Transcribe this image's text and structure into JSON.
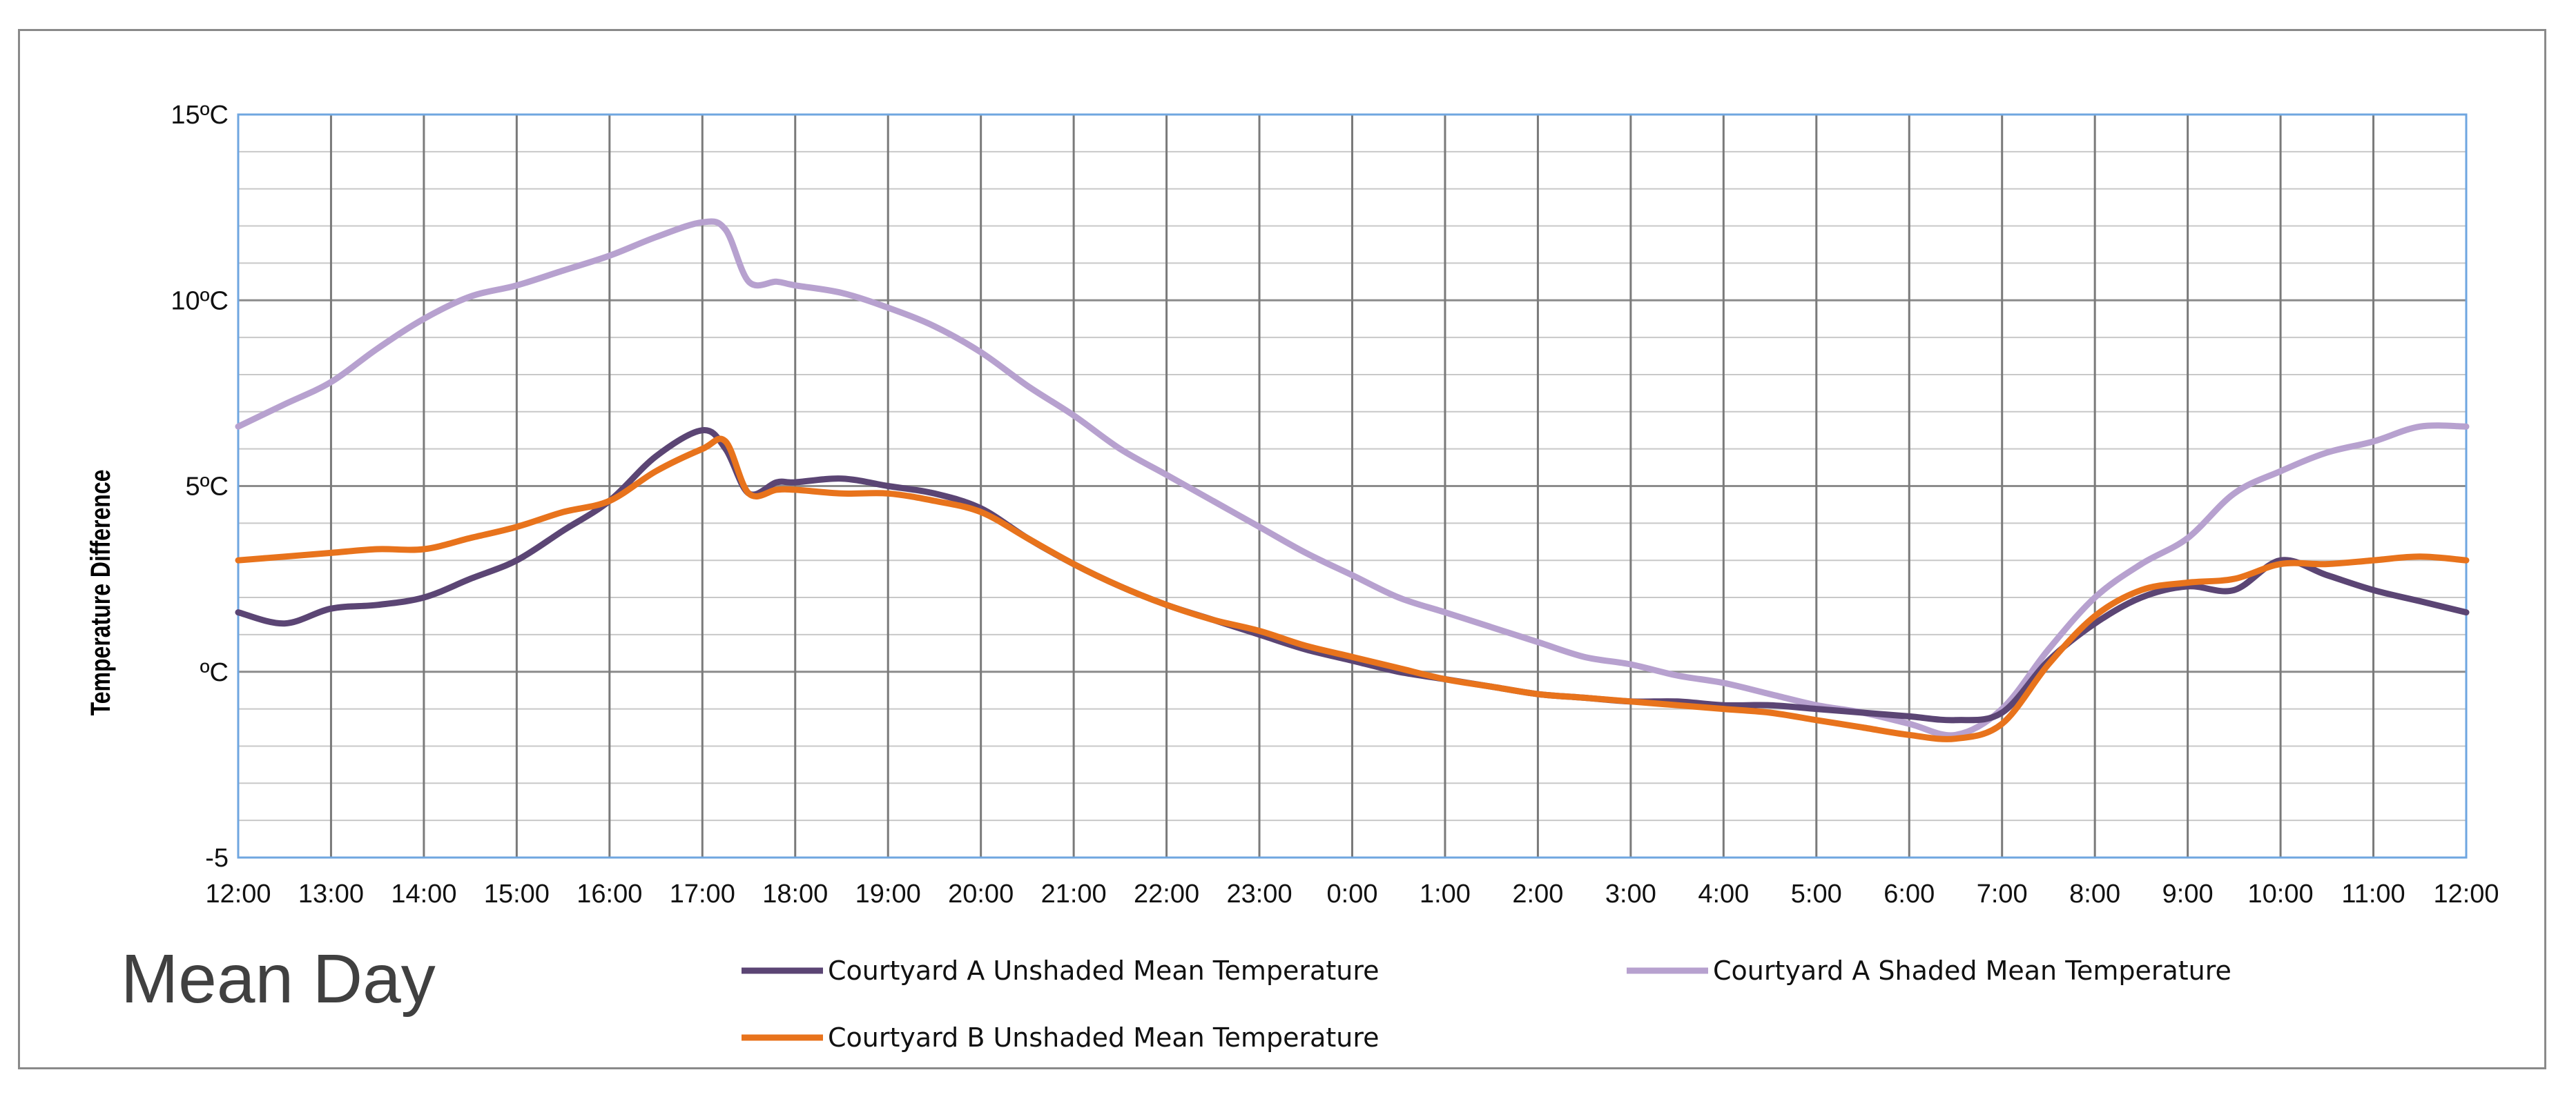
{
  "chart_data": {
    "type": "line",
    "title": "Mean Day",
    "ylabel": "Temperature Difference",
    "xlabel": "",
    "ylim": [
      -5,
      15
    ],
    "y_ticks": [
      {
        "value": 15,
        "label": "15ºC"
      },
      {
        "value": 10,
        "label": "10ºC"
      },
      {
        "value": 5,
        "label": "5ºC"
      },
      {
        "value": 0,
        "label": "ºC"
      },
      {
        "value": -5,
        "label": "-5"
      }
    ],
    "minor_y_step": 1,
    "x_tick_labels": [
      "12:00",
      "13:00",
      "14:00",
      "15:00",
      "16:00",
      "17:00",
      "18:00",
      "19:00",
      "20:00",
      "21:00",
      "22:00",
      "23:00",
      "0:00",
      "1:00",
      "2:00",
      "3:00",
      "4:00",
      "5:00",
      "6:00",
      "7:00",
      "8:00",
      "9:00",
      "10:00",
      "11:00",
      "12:00"
    ],
    "x_hours": [
      0,
      0.5,
      1,
      1.5,
      2,
      2.5,
      3,
      3.5,
      4,
      4.5,
      5,
      5.25,
      5.5,
      5.8,
      6,
      6.5,
      7,
      7.5,
      8,
      8.5,
      9,
      9.5,
      10,
      10.5,
      11,
      11.5,
      12,
      12.5,
      13,
      13.5,
      14,
      14.5,
      15,
      15.5,
      16,
      16.5,
      17,
      17.5,
      18,
      18.5,
      19,
      19.5,
      20,
      20.5,
      21,
      21.5,
      22,
      22.5,
      23,
      23.5,
      24
    ],
    "series": [
      {
        "name": "Courtyard A Unshaded Mean Temperature",
        "color": "#5b4574",
        "values": [
          1.6,
          1.3,
          1.7,
          1.8,
          2.0,
          2.5,
          3.0,
          3.8,
          4.6,
          5.8,
          6.5,
          6.0,
          4.8,
          5.1,
          5.1,
          5.2,
          5.0,
          4.8,
          4.4,
          3.6,
          2.9,
          2.3,
          1.8,
          1.4,
          1.0,
          0.6,
          0.3,
          0.0,
          -0.2,
          -0.4,
          -0.6,
          -0.7,
          -0.8,
          -0.8,
          -0.9,
          -0.9,
          -1.0,
          -1.1,
          -1.2,
          -1.3,
          -1.1,
          0.3,
          1.3,
          2.0,
          2.3,
          2.2,
          3.0,
          2.6,
          2.2,
          1.9,
          1.6
        ]
      },
      {
        "name": "Courtyard A Shaded Mean Temperature",
        "color": "#b7a1cf",
        "values": [
          6.6,
          7.2,
          7.8,
          8.7,
          9.5,
          10.1,
          10.4,
          10.8,
          11.2,
          11.7,
          12.1,
          11.9,
          10.5,
          10.5,
          10.4,
          10.2,
          9.8,
          9.3,
          8.6,
          7.7,
          6.9,
          6.0,
          5.3,
          4.6,
          3.9,
          3.2,
          2.6,
          2.0,
          1.6,
          1.2,
          0.8,
          0.4,
          0.2,
          -0.1,
          -0.3,
          -0.6,
          -0.9,
          -1.1,
          -1.4,
          -1.7,
          -1.0,
          0.6,
          2.0,
          2.9,
          3.6,
          4.8,
          5.4,
          5.9,
          6.2,
          6.6,
          6.6
        ]
      },
      {
        "name": "Courtyard B Unshaded Mean Temperature",
        "color": "#e8731c",
        "values": [
          3.0,
          3.1,
          3.2,
          3.3,
          3.3,
          3.6,
          3.9,
          4.3,
          4.6,
          5.4,
          6.0,
          6.2,
          4.8,
          4.9,
          4.9,
          4.8,
          4.8,
          4.6,
          4.3,
          3.6,
          2.9,
          2.3,
          1.8,
          1.4,
          1.1,
          0.7,
          0.4,
          0.1,
          -0.2,
          -0.4,
          -0.6,
          -0.7,
          -0.8,
          -0.9,
          -1.0,
          -1.1,
          -1.3,
          -1.5,
          -1.7,
          -1.8,
          -1.4,
          0.2,
          1.5,
          2.2,
          2.4,
          2.5,
          2.9,
          2.9,
          3.0,
          3.1,
          3.0
        ]
      }
    ],
    "legend_position": "bottom"
  }
}
